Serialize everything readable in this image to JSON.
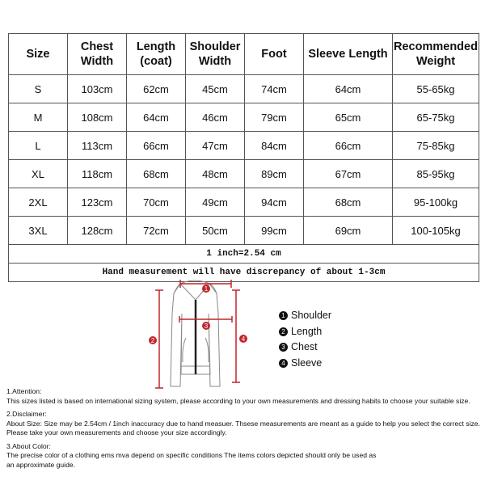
{
  "table": {
    "headers": [
      [
        "Size",
        ""
      ],
      [
        "Chest",
        "Width"
      ],
      [
        "Length",
        "(coat)"
      ],
      [
        "Shoulder",
        "Width"
      ],
      [
        "Foot",
        ""
      ],
      [
        "Sleeve Length",
        ""
      ],
      [
        "Recommended",
        "Weight"
      ]
    ],
    "rows": [
      [
        "S",
        "103cm",
        "62cm",
        "45cm",
        "74cm",
        "64cm",
        "55-65kg"
      ],
      [
        "M",
        "108cm",
        "64cm",
        "46cm",
        "79cm",
        "65cm",
        "65-75kg"
      ],
      [
        "L",
        "113cm",
        "66cm",
        "47cm",
        "84cm",
        "66cm",
        "75-85kg"
      ],
      [
        "XL",
        "118cm",
        "68cm",
        "48cm",
        "89cm",
        "67cm",
        "85-95kg"
      ],
      [
        "2XL",
        "123cm",
        "70cm",
        "49cm",
        "94cm",
        "68cm",
        "95-100kg"
      ],
      [
        "3XL",
        "128cm",
        "72cm",
        "50cm",
        "99cm",
        "69cm",
        "100-105kg"
      ]
    ],
    "note1": "1 inch=2.54 cm",
    "note2": "Hand measurement will have discrepancy of about 1-3cm"
  },
  "diagram": {
    "accent": "#c0262b",
    "markers": [
      "1",
      "2",
      "3",
      "4"
    ]
  },
  "legend": [
    {
      "n": "1",
      "label": "Shoulder"
    },
    {
      "n": "2",
      "label": "Length"
    },
    {
      "n": "3",
      "label": "Chest"
    },
    {
      "n": "4",
      "label": "Sleeve"
    }
  ],
  "notes": [
    {
      "title": "1.Attention:",
      "lines": [
        "This sizes listed is based on international sizing system, please according to your own measurements and dressing habits to choose your suitable size."
      ]
    },
    {
      "title": "2.Disclaimer:",
      "lines": [
        "About Size: Size may be 2.54cm / 1inch inaccuracy due to hand measuer. Thsese measurements are meant as a guide to help you select the correct size.",
        "Please take your own measurements and choose your size accordingly."
      ]
    },
    {
      "title": "3.About Color:",
      "lines": [
        "The precise color of a clothing ems mva depend on specific conditions The items colors depicted should only be used as",
        "an approximate guide."
      ]
    }
  ]
}
